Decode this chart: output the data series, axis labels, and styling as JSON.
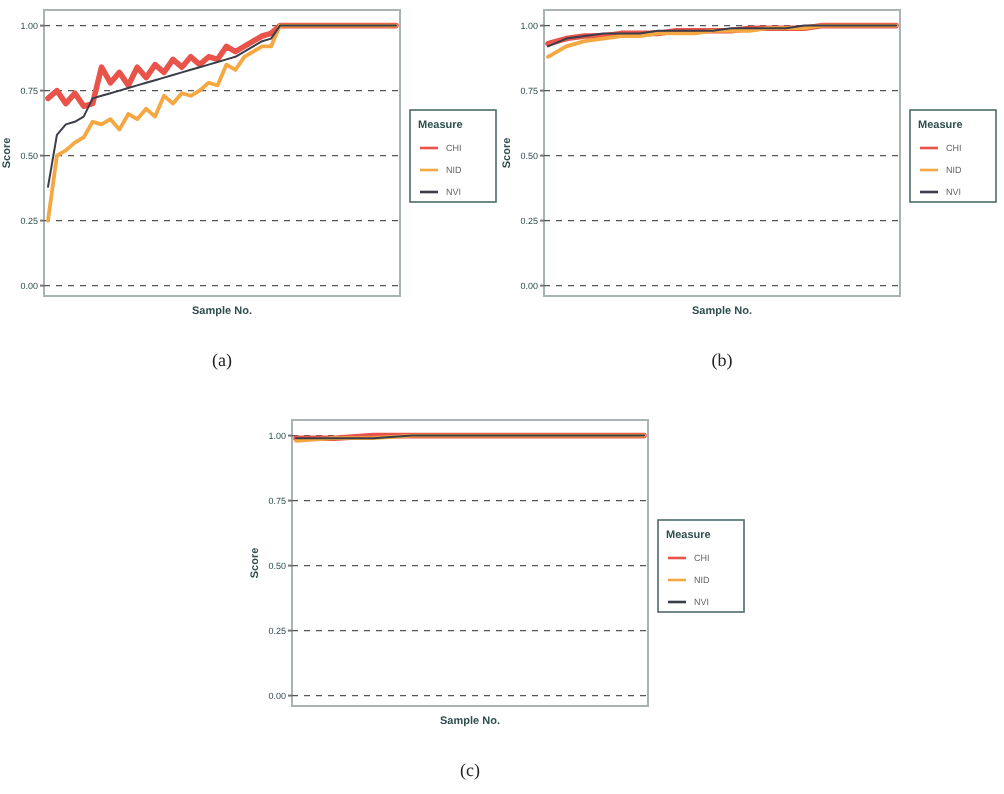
{
  "chart_data": [
    {
      "type": "line",
      "xlabel": "Sample No.",
      "ylabel": "Score",
      "legend_title": "Measure",
      "legend": "right",
      "grid": "y",
      "annotations": [
        "(a)"
      ],
      "ylim": [
        -0.04,
        1.06
      ],
      "yticks": [
        {
          "value": 0,
          "label": "0.00"
        },
        {
          "value": 0.25,
          "label": "0.25"
        },
        {
          "value": 0.5,
          "label": "0.50"
        },
        {
          "value": 0.75,
          "label": "0.75"
        },
        {
          "value": 1,
          "label": "1.00"
        }
      ],
      "categories": [
        null,
        null,
        null,
        null,
        null,
        null,
        null,
        null,
        null,
        null,
        null,
        null,
        null,
        null,
        null,
        null,
        null,
        null,
        null,
        null,
        null,
        null,
        null,
        null,
        null,
        null,
        null,
        null,
        null,
        null,
        null,
        null,
        null,
        null,
        null,
        null,
        null,
        null,
        null,
        null
      ],
      "series": [
        {
          "name": "CHI",
          "color": "#e8534a",
          "values": [
            0.72,
            0.75,
            0.7,
            0.74,
            0.69,
            0.7,
            0.84,
            0.78,
            0.82,
            0.77,
            0.84,
            0.8,
            0.85,
            0.82,
            0.87,
            0.84,
            0.88,
            0.85,
            0.88,
            0.87,
            0.92,
            0.9,
            0.92,
            0.94,
            0.96,
            0.97,
            1.0,
            1.0,
            1.0,
            1.0,
            1.0,
            1.0,
            1.0,
            1.0,
            1.0,
            1.0,
            1.0,
            1.0,
            1.0,
            1.0
          ]
        },
        {
          "name": "NID",
          "color": "#f5a742",
          "values": [
            0.25,
            0.5,
            0.52,
            0.55,
            0.57,
            0.63,
            0.62,
            0.64,
            0.6,
            0.66,
            0.64,
            0.68,
            0.65,
            0.73,
            0.7,
            0.74,
            0.73,
            0.75,
            0.78,
            0.77,
            0.85,
            0.83,
            0.88,
            0.9,
            0.92,
            0.92,
            1.0,
            1.0,
            1.0,
            1.0,
            1.0,
            1.0,
            1.0,
            1.0,
            1.0,
            1.0,
            1.0,
            1.0,
            1.0,
            1.0
          ]
        },
        {
          "name": "NVI",
          "color": "#3a3d4a",
          "values": [
            0.38,
            0.58,
            0.62,
            0.63,
            0.65,
            0.72,
            0.73,
            0.74,
            0.75,
            0.76,
            0.77,
            0.78,
            0.79,
            0.8,
            0.81,
            0.82,
            0.83,
            0.84,
            0.85,
            0.86,
            0.87,
            0.88,
            0.9,
            0.92,
            0.94,
            0.95,
            1.0,
            1.0,
            1.0,
            1.0,
            1.0,
            1.0,
            1.0,
            1.0,
            1.0,
            1.0,
            1.0,
            1.0,
            1.0,
            1.0
          ]
        }
      ]
    },
    {
      "type": "line",
      "xlabel": "Sample No.",
      "ylabel": "Score",
      "legend_title": "Measure",
      "legend": "right",
      "grid": "y",
      "annotations": [
        "(b)"
      ],
      "ylim": [
        -0.04,
        1.06
      ],
      "yticks": [
        {
          "value": 0,
          "label": "0.00"
        },
        {
          "value": 0.25,
          "label": "0.25"
        },
        {
          "value": 0.5,
          "label": "0.50"
        },
        {
          "value": 0.75,
          "label": "0.75"
        },
        {
          "value": 1,
          "label": "1.00"
        }
      ],
      "categories": [
        null,
        null,
        null,
        null,
        null,
        null,
        null,
        null,
        null,
        null,
        null,
        null,
        null,
        null,
        null,
        null,
        null,
        null,
        null,
        null
      ],
      "series": [
        {
          "name": "CHI",
          "color": "#e8534a",
          "values": [
            0.93,
            0.95,
            0.96,
            0.96,
            0.97,
            0.97,
            0.97,
            0.98,
            0.98,
            0.98,
            0.98,
            0.99,
            0.99,
            0.99,
            0.99,
            1.0,
            1.0,
            1.0,
            1.0,
            1.0
          ]
        },
        {
          "name": "NID",
          "color": "#f5a742",
          "values": [
            0.88,
            0.92,
            0.94,
            0.95,
            0.96,
            0.96,
            0.97,
            0.97,
            0.97,
            0.98,
            0.98,
            0.98,
            0.99,
            0.99,
            0.99,
            1.0,
            1.0,
            1.0,
            1.0,
            1.0
          ]
        },
        {
          "name": "NVI",
          "color": "#3a3d4a",
          "values": [
            0.92,
            0.95,
            0.96,
            0.97,
            0.97,
            0.97,
            0.98,
            0.98,
            0.98,
            0.98,
            0.99,
            0.99,
            0.99,
            0.99,
            1.0,
            1.0,
            1.0,
            1.0,
            1.0,
            1.0
          ]
        }
      ]
    },
    {
      "type": "line",
      "xlabel": "Sample No.",
      "ylabel": "Score",
      "legend_title": "Measure",
      "legend": "right",
      "grid": "y",
      "annotations": [
        "(c)"
      ],
      "ylim": [
        -0.04,
        1.06
      ],
      "yticks": [
        {
          "value": 0,
          "label": "0.00"
        },
        {
          "value": 0.25,
          "label": "0.25"
        },
        {
          "value": 0.5,
          "label": "0.50"
        },
        {
          "value": 0.75,
          "label": "0.75"
        },
        {
          "value": 1,
          "label": "1.00"
        }
      ],
      "categories": [
        null,
        null,
        null,
        null,
        null,
        null,
        null,
        null,
        null,
        null
      ],
      "series": [
        {
          "name": "CHI",
          "color": "#e8534a",
          "values": [
            0.99,
            0.99,
            1.0,
            1.0,
            1.0,
            1.0,
            1.0,
            1.0,
            1.0,
            1.0
          ]
        },
        {
          "name": "NID",
          "color": "#f5a742",
          "values": [
            0.98,
            0.99,
            0.99,
            1.0,
            1.0,
            1.0,
            1.0,
            1.0,
            1.0,
            1.0
          ]
        },
        {
          "name": "NVI",
          "color": "#3a3d4a",
          "values": [
            0.99,
            0.99,
            0.99,
            1.0,
            1.0,
            1.0,
            1.0,
            1.0,
            1.0,
            1.0
          ]
        }
      ]
    }
  ]
}
